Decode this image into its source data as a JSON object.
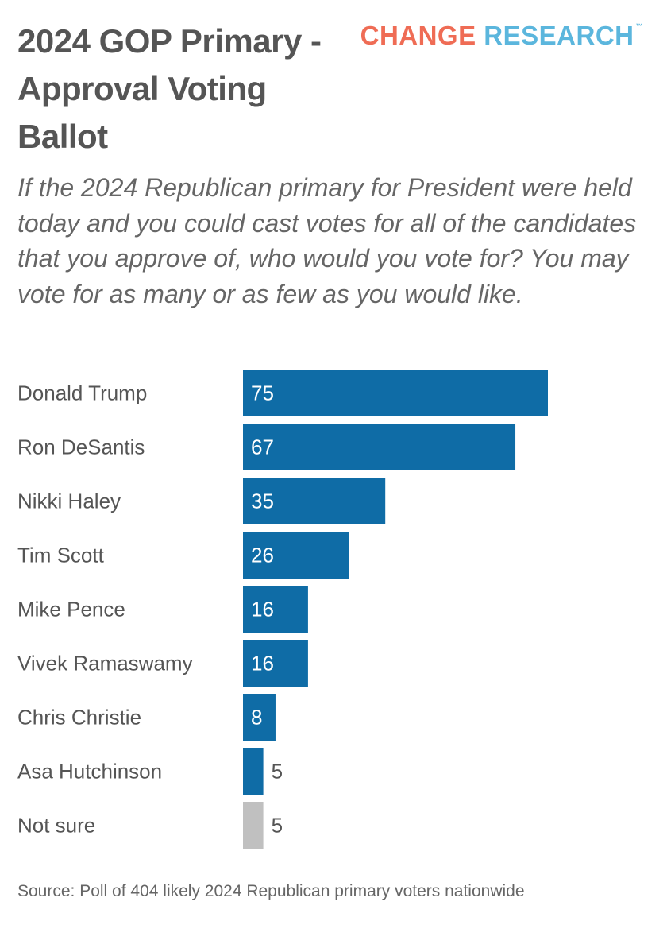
{
  "header": {
    "title": "2024 GOP Primary - Approval Voting Ballot",
    "subtitle": "If the 2024 Republican primary for President were held today and you could cast votes for all of the candidates that you approve of, who would you vote for? You may vote for as many or as few as you would like."
  },
  "logo": {
    "word1": "CHANGE",
    "word2": "RESEARCH",
    "trademark": "™",
    "color1": "#ef6c55",
    "color2": "#5bb6dd"
  },
  "chart_data": {
    "type": "bar",
    "orientation": "horizontal",
    "categories": [
      "Donald Trump",
      "Ron DeSantis",
      "Nikki Haley",
      "Tim Scott",
      "Mike Pence",
      "Vivek Ramaswamy",
      "Chris Christie",
      "Asa Hutchinson",
      "Not sure"
    ],
    "values": [
      75,
      67,
      35,
      26,
      16,
      16,
      8,
      5,
      5
    ],
    "data_labels": [
      "75",
      "67",
      "35",
      "26",
      "16",
      "16",
      "8",
      "5",
      "5"
    ],
    "bar_colors": [
      "#0f6ca6",
      "#0f6ca6",
      "#0f6ca6",
      "#0f6ca6",
      "#0f6ca6",
      "#0f6ca6",
      "#0f6ca6",
      "#0f6ca6",
      "#c0c0c0"
    ],
    "xlim": [
      0,
      100
    ],
    "grid": false,
    "legend": "none"
  },
  "footer": {
    "source": "Source: Poll of 404 likely 2024 Republican primary voters nationwide"
  }
}
